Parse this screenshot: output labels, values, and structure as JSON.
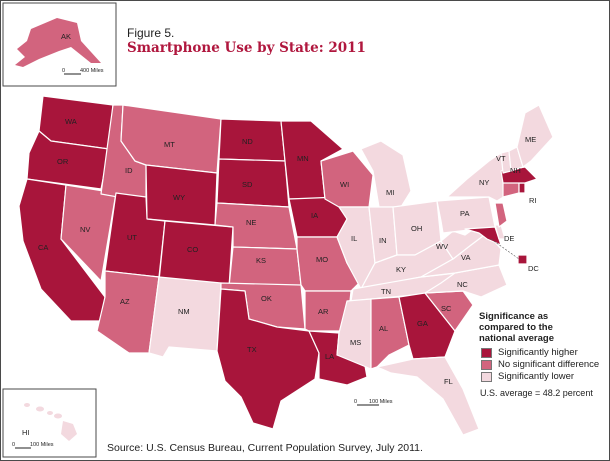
{
  "figure_label": "Figure 5.",
  "title": "Smartphone Use by State: 2011",
  "source": "Source: U.S. Census Bureau, Current Population Survey, July 2011.",
  "legend": {
    "title_lines": [
      "Significance as",
      "compared to the",
      "national average"
    ],
    "items": [
      {
        "label": "Significantly higher",
        "color": "#a8153b"
      },
      {
        "label": "No significant difference",
        "color": "#d2647e"
      },
      {
        "label": "Significantly lower",
        "color": "#f3d9df"
      }
    ]
  },
  "national_average": "U.S. average = 48.2 percent",
  "scale_bars": {
    "main": "100 Miles",
    "alaska": "400 Miles",
    "hawaii": "100 Miles"
  },
  "colors": {
    "higher": "#a8153b",
    "no_difference": "#d2647e",
    "lower": "#f3d9df",
    "water": "#ffffff",
    "border": "#ffffff"
  },
  "states": {
    "WA": "higher",
    "OR": "higher",
    "CA": "higher",
    "ID": "no_difference",
    "NV": "no_difference",
    "MT": "no_difference",
    "WY": "higher",
    "UT": "higher",
    "CO": "higher",
    "AZ": "no_difference",
    "NM": "lower",
    "ND": "higher",
    "SD": "higher",
    "NE": "no_difference",
    "KS": "no_difference",
    "OK": "no_difference",
    "TX": "higher",
    "MN": "higher",
    "IA": "higher",
    "MO": "no_difference",
    "AR": "no_difference",
    "LA": "higher",
    "WI": "no_difference",
    "IL": "lower",
    "MI": "lower",
    "IN": "lower",
    "OH": "lower",
    "KY": "lower",
    "TN": "lower",
    "MS": "lower",
    "AL": "no_difference",
    "GA": "higher",
    "FL": "lower",
    "SC": "no_difference",
    "NC": "lower",
    "VA": "lower",
    "WV": "lower",
    "PA": "lower",
    "NY": "lower",
    "MD": "higher",
    "DE": "lower",
    "NJ": "no_difference",
    "CT": "no_difference",
    "RI": "higher",
    "MA": "higher",
    "VT": "lower",
    "NH": "lower",
    "ME": "lower",
    "DC": "higher",
    "AK": "no_difference",
    "HI": "lower"
  }
}
